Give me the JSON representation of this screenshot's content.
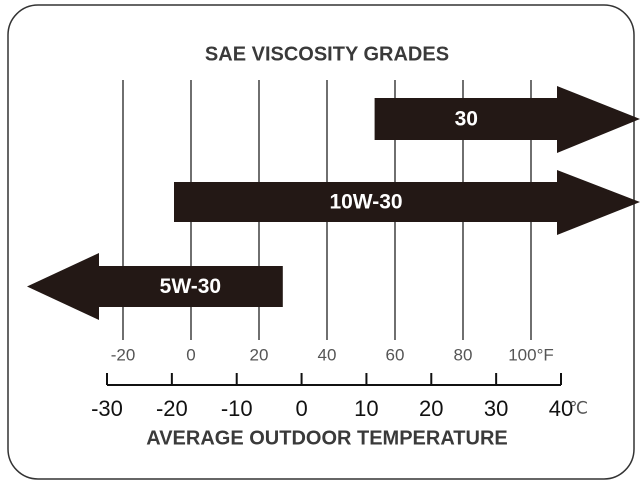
{
  "chart_data": {
    "type": "range",
    "title": "SAE VISCOSITY GRADES",
    "xlabel": "AVERAGE OUTDOOR TEMPERATURE",
    "xlim": [
      -20,
      100
    ],
    "xticks": [
      -20,
      0,
      20,
      40,
      60,
      80,
      {
        "value": 100,
        "label": "100°F"
      }
    ],
    "x2lim": [
      -30,
      40
    ],
    "x2ticks": [
      -30,
      -20,
      -10,
      0,
      10,
      20,
      30,
      40
    ],
    "x2unit": "℃",
    "color": "#231815",
    "bars": [
      {
        "label": "30",
        "start": 54,
        "end": null
      },
      {
        "label": "10W-30",
        "start": -5,
        "end": null
      },
      {
        "label": "5W-30",
        "start": null,
        "end": 27
      }
    ]
  }
}
